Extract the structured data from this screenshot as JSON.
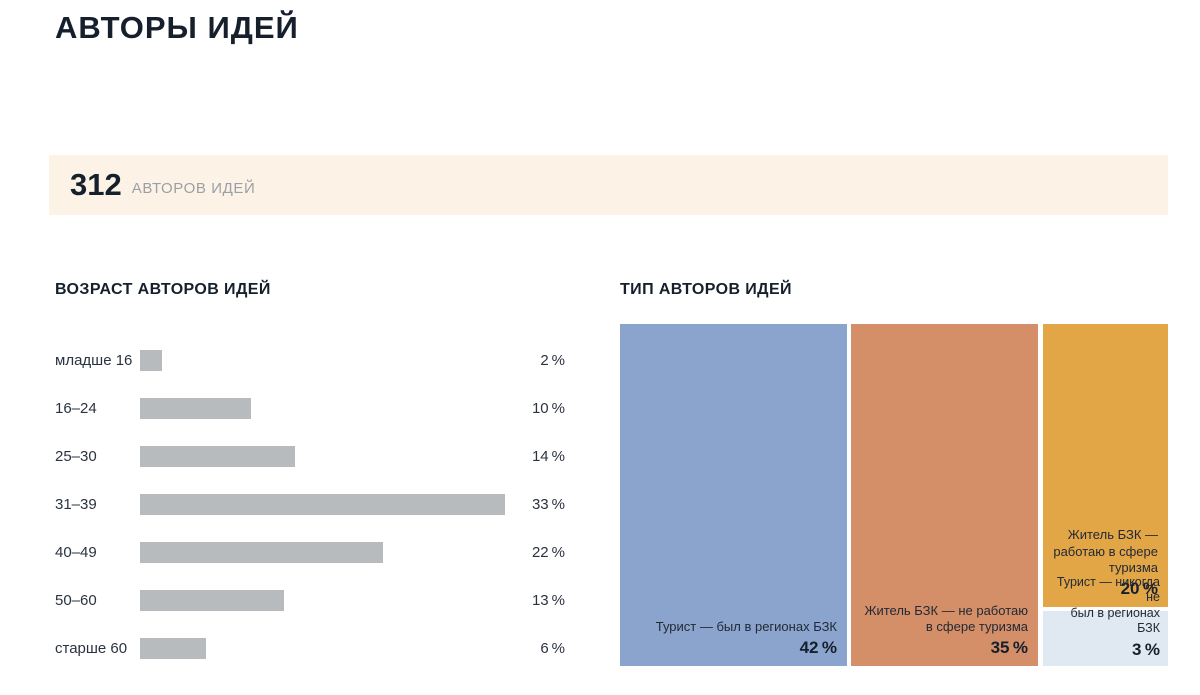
{
  "page": {
    "title": "АВТОРЫ ИДЕЙ"
  },
  "summary": {
    "count": "312",
    "label": "АВТОРОВ ИДЕЙ"
  },
  "colors": {
    "banner_bg": "#fcf3e6",
    "bar_gray": "#b7bbbe",
    "treemap_blue": "#8ba4ce",
    "treemap_salmon": "#d48e68",
    "treemap_gold": "#e2a647",
    "treemap_pale": "#e0e9f2",
    "text_navy": "#161f2c"
  },
  "chart_data": [
    {
      "type": "bar",
      "orientation": "horizontal",
      "title": "ВОЗРАСТ АВТОРОВ ИДЕЙ",
      "categories": [
        "младше 16",
        "16–24",
        "25–30",
        "31–39",
        "40–49",
        "50–60",
        "старше 60"
      ],
      "values": [
        2,
        10,
        14,
        33,
        22,
        13,
        6
      ],
      "value_labels": [
        "2 %",
        "10 %",
        "14 %",
        "33 %",
        "22 %",
        "13 %",
        "6 %"
      ],
      "unit": "%",
      "xlim": [
        0,
        33
      ],
      "grid": false,
      "legend": "none",
      "bar_color": "#b7bbbe"
    },
    {
      "type": "treemap",
      "title": "ТИП АВТОРОВ ИДЕЙ",
      "unit": "%",
      "items": [
        {
          "label": "Турист — был в регионах БЗК",
          "value": 42,
          "value_label": "42 %",
          "color": "#8ba4ce"
        },
        {
          "label": "Житель БЗК — не работаю\nв сфере туризма",
          "value": 35,
          "value_label": "35 %",
          "color": "#d48e68"
        },
        {
          "label": "Житель БЗК —\nработаю в сфере\nтуризма",
          "value": 20,
          "value_label": "20 %",
          "color": "#e2a647"
        },
        {
          "label": "Турист — никогда не\nбыл в регионах БЗК",
          "value": 3,
          "value_label": "3 %",
          "color": "#e0e9f2"
        }
      ]
    }
  ]
}
